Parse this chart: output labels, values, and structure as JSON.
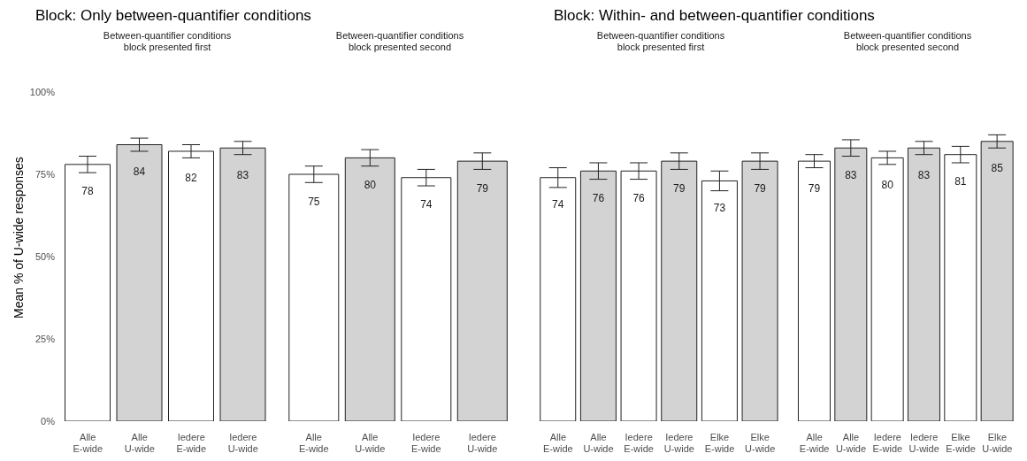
{
  "chart_data": [
    {
      "type": "bar",
      "title": "Block: Only between-quantifier conditions",
      "subtitle": "Between-quantifier conditions\nblock presented first",
      "ylabel": "Mean % of U-wide responses",
      "categories": [
        "Alle\nE-wide",
        "Alle\nU-wide",
        "Iedere\nE-wide",
        "Iedere\nU-wide"
      ],
      "values": [
        78,
        84,
        82,
        83
      ],
      "errors": [
        2.5,
        2,
        2,
        2
      ],
      "colors": [
        "#ffffff",
        "#d3d3d3",
        "#ffffff",
        "#d3d3d3"
      ],
      "data_labels": true,
      "ylim": [
        0,
        100
      ],
      "yticks": [
        {
          "value": 0,
          "label": "0%"
        },
        {
          "value": 25,
          "label": "25%"
        },
        {
          "value": 50,
          "label": "50%"
        },
        {
          "value": 75,
          "label": "75%"
        },
        {
          "value": 100,
          "label": "100%"
        }
      ],
      "grid": false,
      "legend": false
    },
    {
      "type": "bar",
      "subtitle": "Between-quantifier conditions\nblock presented second",
      "categories": [
        "Alle\nE-wide",
        "Alle\nU-wide",
        "Iedere\nE-wide",
        "Iedere\nU-wide"
      ],
      "values": [
        75,
        80,
        74,
        79
      ],
      "errors": [
        2.5,
        2.5,
        2.5,
        2.5
      ],
      "colors": [
        "#ffffff",
        "#d3d3d3",
        "#ffffff",
        "#d3d3d3"
      ],
      "data_labels": true,
      "ylim": [
        0,
        100
      ],
      "tick_labels": "x",
      "grid": false,
      "legend": false
    },
    {
      "type": "bar",
      "title": "Block: Within- and between-quantifier conditions",
      "subtitle": "Between-quantifier conditions\nblock presented first",
      "categories": [
        "Alle\nE-wide",
        "Alle\nU-wide",
        "Iedere\nE-wide",
        "Iedere\nU-wide",
        "Elke\nE-wide",
        "Elke\nU-wide"
      ],
      "values": [
        74,
        76,
        76,
        79,
        73,
        79
      ],
      "errors": [
        3,
        2.5,
        2.5,
        2.5,
        3,
        2.5
      ],
      "colors": [
        "#ffffff",
        "#d3d3d3",
        "#ffffff",
        "#d3d3d3",
        "#ffffff",
        "#d3d3d3"
      ],
      "data_labels": true,
      "ylim": [
        0,
        100
      ],
      "tick_labels": "x",
      "grid": false,
      "legend": false
    },
    {
      "type": "bar",
      "subtitle": "Between-quantifier conditions\nblock presented second",
      "categories": [
        "Alle\nE-wide",
        "Alle\nU-wide",
        "Iedere\nE-wide",
        "Iedere\nU-wide",
        "Elke\nE-wide",
        "Elke\nU-wide"
      ],
      "values": [
        79,
        83,
        80,
        83,
        81,
        85
      ],
      "errors": [
        2,
        2.5,
        2,
        2,
        2.5,
        2
      ],
      "colors": [
        "#ffffff",
        "#d3d3d3",
        "#ffffff",
        "#d3d3d3",
        "#ffffff",
        "#d3d3d3"
      ],
      "data_labels": true,
      "ylim": [
        0,
        100
      ],
      "tick_labels": "x",
      "grid": false,
      "legend": false
    }
  ]
}
